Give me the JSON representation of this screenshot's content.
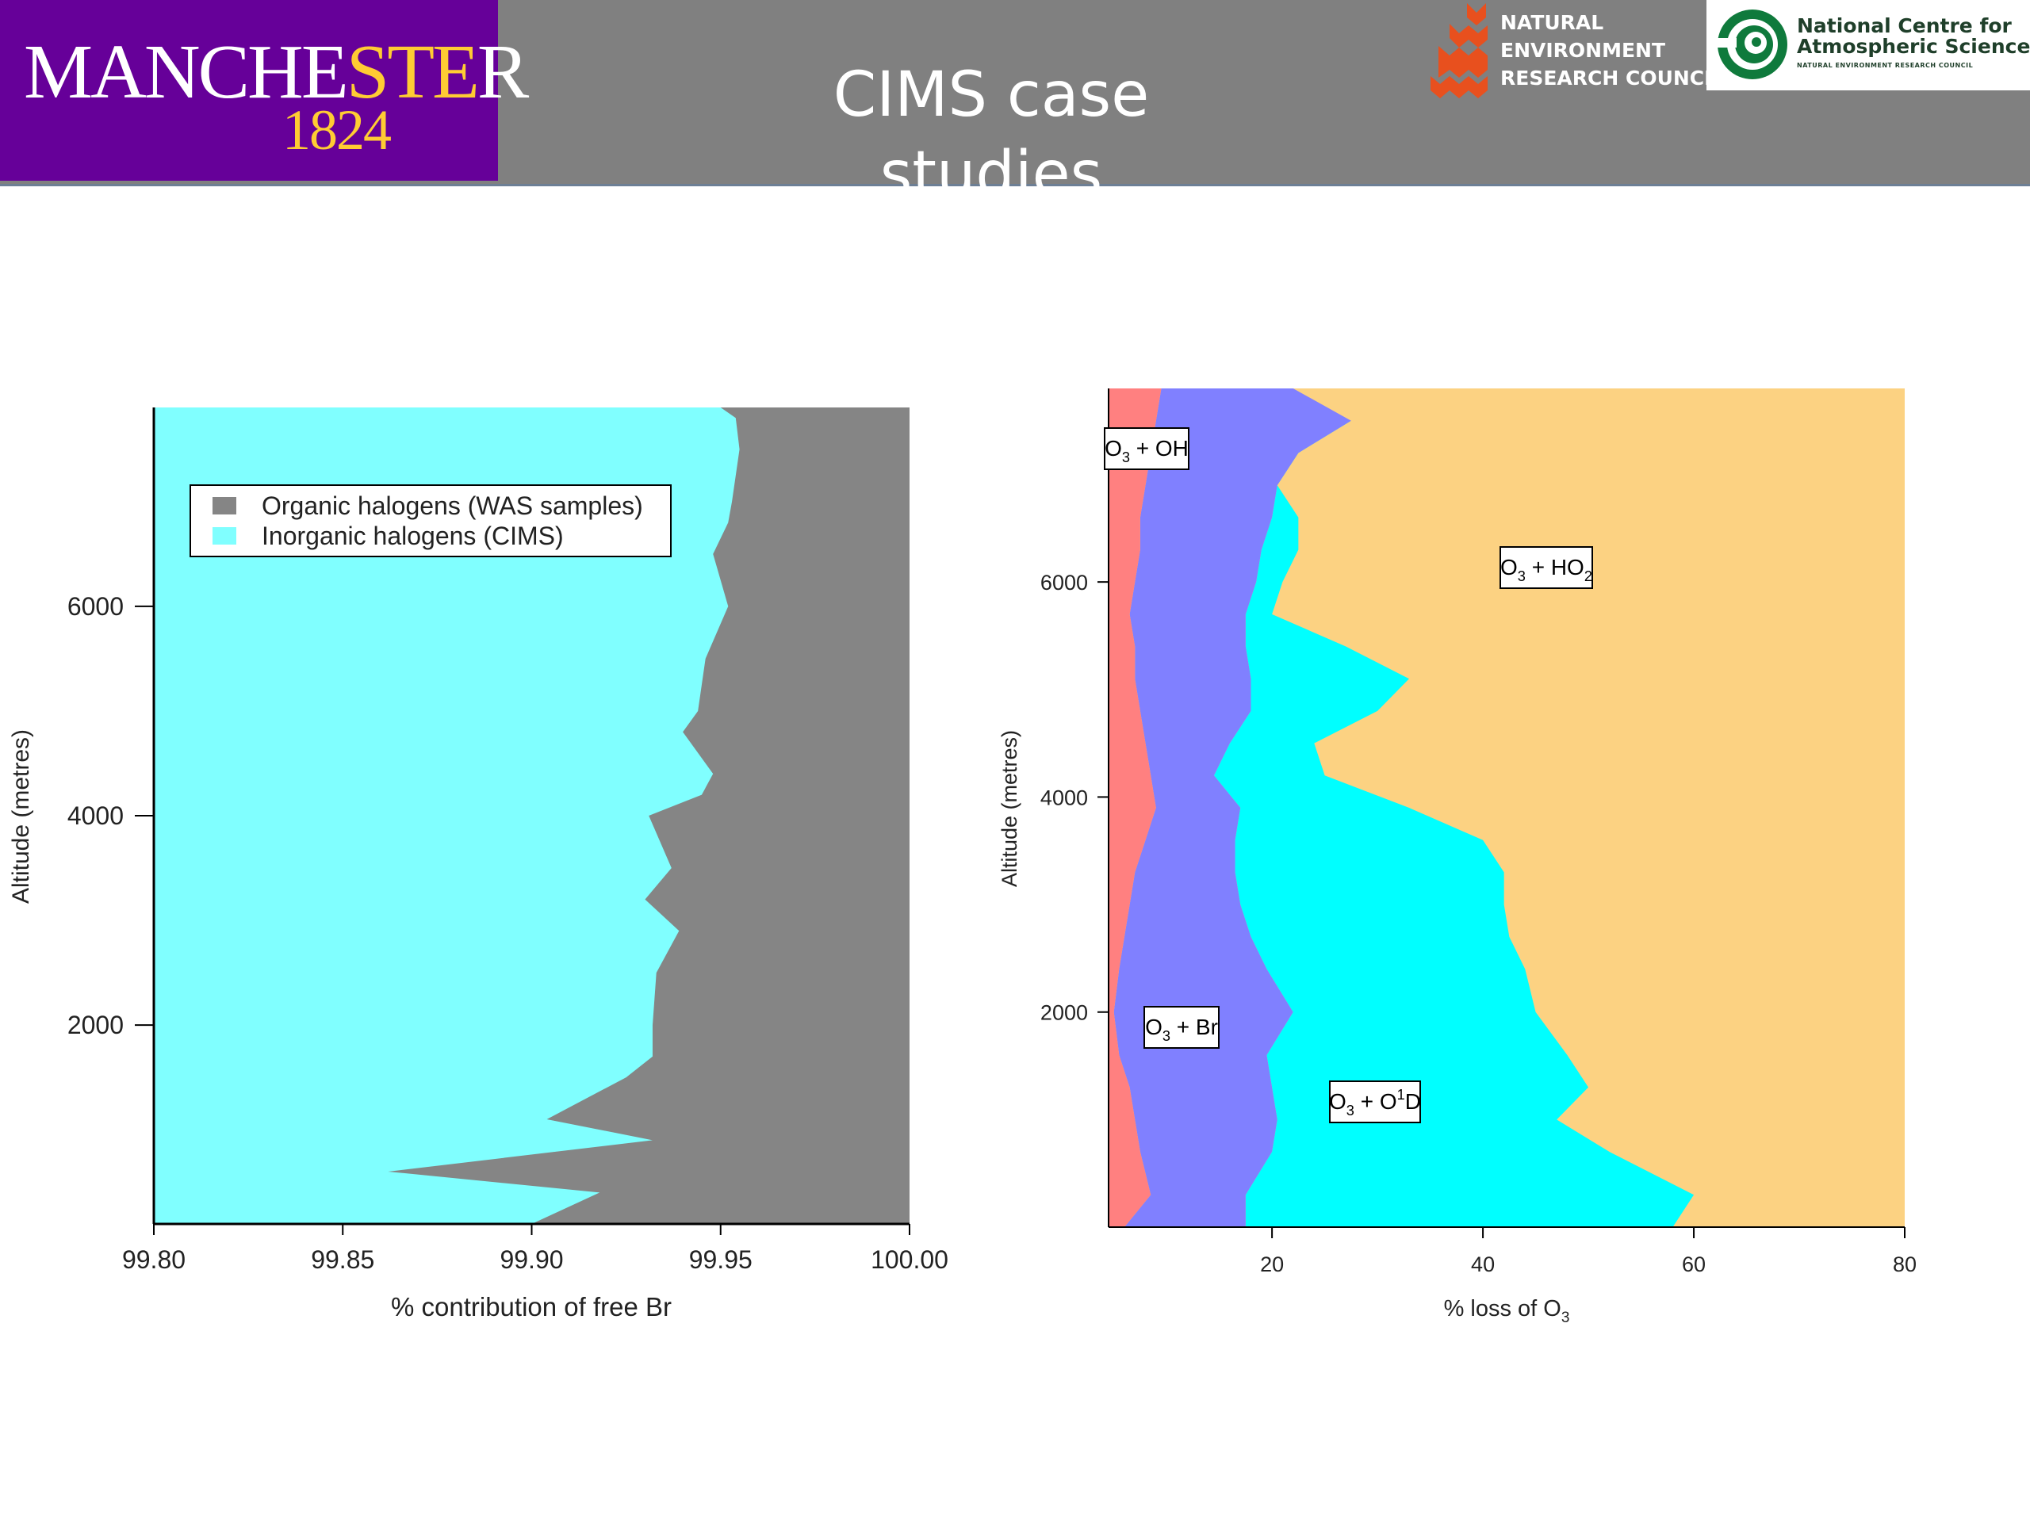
{
  "header": {
    "title": "CIMS case studies",
    "manchester_logo": {
      "word": "MANCHESTER",
      "year": "1824"
    },
    "nerc_logo": {
      "lines": [
        "NATURAL",
        "ENVIRONMENT",
        "RESEARCH COUNCIL"
      ]
    },
    "ncas_logo": {
      "line1": "National Centre for",
      "line2": "Atmospheric Science",
      "tagline": "NATURAL ENVIRONMENT RESEARCH COUNCIL"
    }
  },
  "colors": {
    "header_bg": "#808080",
    "manchester_purple": "#660099",
    "manchester_gold": "#ffcc33",
    "organic": "#858585",
    "inorganic": "#80ffff",
    "oh": "#ff8080",
    "br": "#8080ff",
    "o1d": "#00ffff",
    "ho2": "#fcd282"
  },
  "chart_data": [
    {
      "type": "area",
      "xlabel": "% contribution of free Br",
      "ylabel": "Altitude (metres)",
      "xlim": [
        99.8,
        100.0
      ],
      "ylim": [
        100,
        7900
      ],
      "xticks": [
        "99.80",
        "99.85",
        "99.90",
        "99.95",
        "100.00"
      ],
      "yticks": [
        "2000",
        "4000",
        "6000"
      ],
      "legend_position": "top-left",
      "legend": [
        {
          "label": "Organic halogens (WAS samples)",
          "color": "#858585"
        },
        {
          "label": "Inorganic halogens (CIMS)",
          "color": "#80ffff"
        }
      ],
      "series": [
        {
          "name": "Inorganic halogens (CIMS)",
          "boundary_x": [
            99.9,
            99.918,
            99.862,
            99.932,
            99.904,
            99.925,
            99.932,
            99.932,
            99.933,
            99.939,
            99.93,
            99.937,
            99.931,
            99.945,
            99.948,
            99.944,
            99.94,
            99.944,
            99.946,
            99.952,
            99.948,
            99.952,
            99.953,
            99.955,
            99.954,
            99.95
          ],
          "altitude": [
            100,
            400,
            600,
            900,
            1100,
            1500,
            1700,
            2000,
            2500,
            2900,
            3200,
            3500,
            4000,
            4200,
            4400,
            4600,
            4800,
            5000,
            5500,
            6000,
            6500,
            6800,
            7000,
            7500,
            7800,
            7900
          ]
        },
        {
          "name": "Organic halogens (WAS samples)",
          "x_range_to": 100.0
        }
      ]
    },
    {
      "type": "area",
      "xlabel": "% loss of O3",
      "ylabel": "Altitude (metres)",
      "xlim": [
        4.5,
        80
      ],
      "ylim": [
        0,
        7800
      ],
      "xticks": [
        "20",
        "40",
        "60",
        "80"
      ],
      "yticks": [
        "2000",
        "4000",
        "6000"
      ],
      "altitude": [
        0,
        300,
        700,
        1000,
        1300,
        1600,
        2000,
        2400,
        2700,
        3000,
        3300,
        3600,
        3900,
        4200,
        4500,
        4800,
        5100,
        5400,
        5700,
        6000,
        6300,
        6600,
        6900,
        7200,
        7500,
        7800
      ],
      "series": [
        {
          "name": "O3 + OH",
          "label": {
            "main": "O",
            "sub": "3",
            "rest": " + OH"
          },
          "cumulative": [
            6.0,
            8.5,
            7.5,
            7.0,
            6.5,
            5.5,
            5.0,
            5.5,
            6.0,
            6.5,
            7.0,
            8.0,
            9.0,
            8.5,
            8.0,
            7.5,
            7.0,
            7.0,
            6.5,
            7.0,
            7.5,
            7.5,
            8.0,
            8.5,
            9.0,
            9.5
          ]
        },
        {
          "name": "O3 + Br",
          "label": {
            "main": "O",
            "sub": "3",
            "rest": " + Br"
          },
          "cumulative": [
            17.5,
            17.5,
            20.0,
            20.5,
            20.0,
            19.5,
            22.0,
            19.5,
            18.0,
            17.0,
            16.5,
            16.5,
            17.0,
            14.5,
            16.0,
            18.0,
            18.0,
            17.5,
            17.5,
            18.5,
            19.0,
            20.0,
            20.5,
            22.5,
            27.5,
            22.0
          ]
        },
        {
          "name": "O3 + O1D",
          "label": {
            "main": "O",
            "sub": "3",
            "rest": " + O",
            "sup": "1",
            "rest2": "D"
          },
          "cumulative": [
            58.0,
            60.0,
            52.0,
            47.0,
            50.0,
            48.0,
            45.0,
            44.0,
            42.5,
            42.0,
            42.0,
            40.0,
            33.0,
            25.0,
            24.0,
            30.0,
            33.0,
            27.0,
            20.0,
            21.0,
            22.5,
            22.5,
            20.5,
            21.0,
            27.5,
            22.0
          ]
        },
        {
          "name": "O3 + HO2",
          "label": {
            "main": "O",
            "sub": "3",
            "rest": " + HO",
            "sub2": "2"
          },
          "cumulative_to": 80
        }
      ]
    }
  ]
}
